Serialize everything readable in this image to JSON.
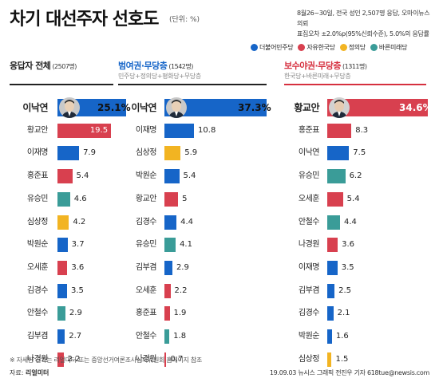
{
  "header": {
    "title": "차기 대선주자 선호도",
    "unit": "(단위: %)",
    "note_lines": [
      "8월26~30일, 전국 성인 2,507명 응답, 오마이뉴스 의뢰",
      "표집오차 ±2.0%p(95%신뢰수준), 5.0%의 응답률"
    ]
  },
  "legend": [
    {
      "label": "더불어민주당",
      "color": "#1665c8"
    },
    {
      "label": "자유한국당",
      "color": "#d8404f"
    },
    {
      "label": "정의당",
      "color": "#f2b422"
    },
    {
      "label": "바른미래당",
      "color": "#3a9c98"
    }
  ],
  "chart_data": [
    {
      "type": "bar",
      "orientation": "horizontal",
      "title": "응답자 전체",
      "sample": "(2507명)",
      "subtitle": "",
      "categories": [
        "이낙연",
        "황교안",
        "이재명",
        "홍준표",
        "유승민",
        "심상정",
        "박원순",
        "오세훈",
        "김경수",
        "안철수",
        "김부겸",
        "나경원"
      ],
      "values": [
        25.1,
        19.5,
        7.9,
        5.4,
        4.6,
        4.2,
        3.7,
        3.6,
        3.5,
        2.9,
        2.7,
        2.2
      ],
      "value_labels": [
        "25.1%",
        "19.5",
        "7.9",
        "5.4",
        "4.6",
        "4.2",
        "3.7",
        "3.6",
        "3.5",
        "2.9",
        "2.7",
        "2.2"
      ],
      "parties": [
        "dem",
        "lk",
        "dem",
        "lk",
        "bm",
        "jd",
        "dem",
        "lk",
        "dem",
        "bm",
        "dem",
        "lk"
      ]
    },
    {
      "type": "bar",
      "orientation": "horizontal",
      "title": "범여권·무당층",
      "sample": "(1542명)",
      "subtitle": "민주당+정의당+평화당+무당층",
      "categories": [
        "이낙연",
        "이재명",
        "심상정",
        "박원순",
        "황교안",
        "김경수",
        "유승민",
        "김부겸",
        "오세훈",
        "홍준표",
        "안철수",
        "나경원"
      ],
      "values": [
        37.3,
        10.8,
        5.9,
        5.4,
        5,
        4.4,
        4.1,
        2.9,
        2.2,
        1.9,
        1.8,
        0.7
      ],
      "value_labels": [
        "37.3%",
        "10.8",
        "5.9",
        "5.4",
        "5",
        "4.4",
        "4.1",
        "2.9",
        "2.2",
        "1.9",
        "1.8",
        "0.7"
      ],
      "parties": [
        "dem",
        "dem",
        "jd",
        "dem",
        "lk",
        "dem",
        "bm",
        "dem",
        "lk",
        "lk",
        "bm",
        "lk"
      ]
    },
    {
      "type": "bar",
      "orientation": "horizontal",
      "title": "보수야권·무당층",
      "sample": "(1311명)",
      "subtitle": "한국당+바른미래+무당층",
      "categories": [
        "황교안",
        "홍준표",
        "이낙연",
        "유승민",
        "오세훈",
        "안철수",
        "나경원",
        "이재명",
        "김부겸",
        "김경수",
        "박원순",
        "심상정"
      ],
      "values": [
        34.6,
        8.3,
        7.5,
        6.2,
        5.4,
        4.4,
        3.6,
        3.5,
        2.5,
        2.1,
        1.6,
        1.5
      ],
      "value_labels": [
        "34.6%",
        "8.3",
        "7.5",
        "6.2",
        "5.4",
        "4.4",
        "3.6",
        "3.5",
        "2.5",
        "2.1",
        "1.6",
        "1.5"
      ],
      "parties": [
        "lk",
        "lk",
        "dem",
        "bm",
        "lk",
        "bm",
        "lk",
        "dem",
        "dem",
        "dem",
        "dem",
        "jd"
      ]
    }
  ],
  "footer": {
    "footnote": "※ 자세한 결과는 리얼미터 또는 중앙선거여론조사심의위원회 홈페이지 참조",
    "source_label": "자료:",
    "source_name": "리얼미터",
    "credit": "19.09.03  뉴시스 그래픽  전진우 기자  618tue@newsis.com"
  }
}
